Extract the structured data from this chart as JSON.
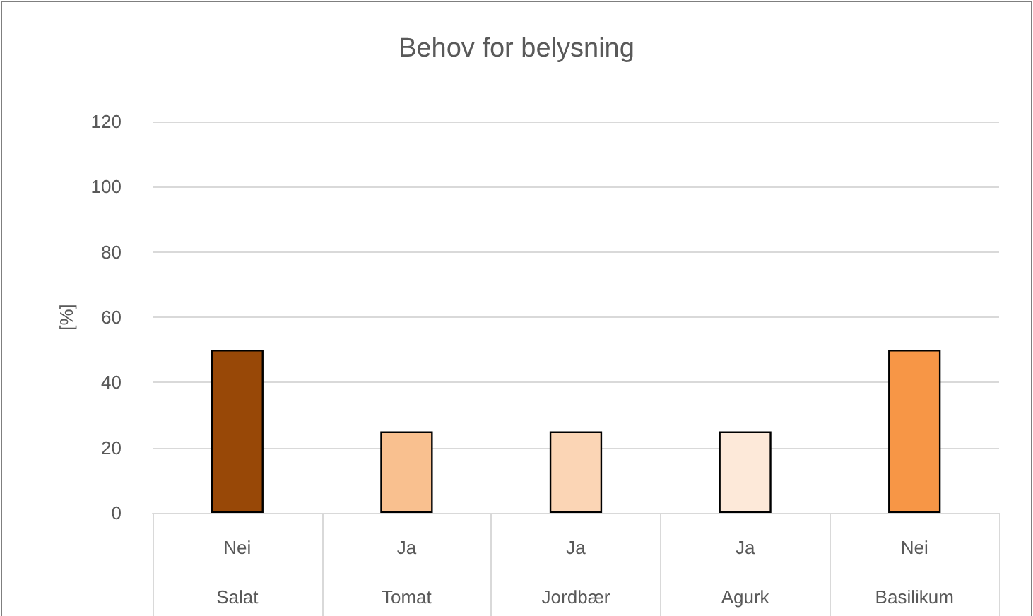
{
  "chart_data": {
    "type": "bar",
    "title": "Behov for belysning",
    "ylabel": "[%]",
    "categories": [
      "Salat",
      "Tomat",
      "Jordbær",
      "Agurk",
      "Basilikum"
    ],
    "values": [
      50,
      25,
      25,
      25,
      50
    ],
    "colors": [
      "#984807",
      "#f9c08f",
      "#fbd5b5",
      "#fde9d9",
      "#f79646"
    ],
    "annotations": [
      "Nei",
      "Ja",
      "Ja",
      "Ja",
      "Nei"
    ],
    "ylim": [
      0,
      120
    ],
    "yticks": [
      0,
      20,
      40,
      60,
      80,
      100,
      120
    ],
    "grid": "y"
  }
}
